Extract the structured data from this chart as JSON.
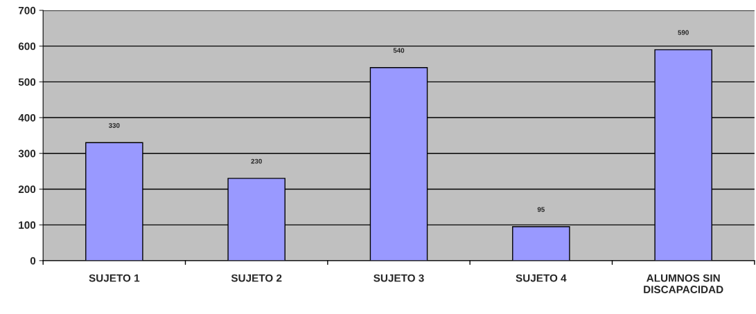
{
  "chart_data": {
    "type": "bar",
    "categories": [
      "SUJETO 1",
      "SUJETO 2",
      "SUJETO 3",
      "SUJETO 4",
      "ALUMNOS SIN\nDISCAPACIDAD"
    ],
    "values": [
      330,
      230,
      540,
      95,
      590
    ],
    "color": "#9999ff",
    "ylim": [
      0,
      700
    ],
    "yticks": [
      0,
      100,
      200,
      300,
      400,
      500,
      600,
      700
    ],
    "grid": "y",
    "data_labels": true
  }
}
